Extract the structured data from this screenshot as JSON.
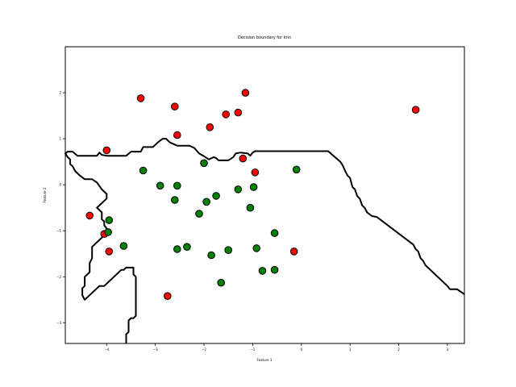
{
  "chart_data": {
    "type": "scatter",
    "title": "Decision boundary for knn",
    "xlabel": "Feature 1",
    "ylabel": "Feature 2",
    "xlim": [
      -4.85,
      3.35
    ],
    "ylim": [
      -3.45,
      3.0
    ],
    "xticks": [
      -4,
      -3,
      -2,
      -1,
      0,
      1,
      2,
      3
    ],
    "yticks": [
      -3,
      -2,
      -1,
      0,
      1,
      2
    ],
    "grid": false,
    "colors": {
      "class_red": "#ff0000",
      "class_green": "#008000",
      "edge": "#000000",
      "boundary": "#000000"
    },
    "series": [
      {
        "color": "red",
        "points": [
          [
            -3.3,
            1.88
          ],
          [
            -2.6,
            1.7
          ],
          [
            -1.15,
            2.0
          ],
          [
            -1.55,
            1.53
          ],
          [
            -1.3,
            1.57
          ],
          [
            -2.55,
            1.08
          ],
          [
            -1.88,
            1.25
          ],
          [
            -4.0,
            0.75
          ],
          [
            -1.2,
            0.57
          ],
          [
            -0.95,
            0.27
          ],
          [
            -4.35,
            -0.67
          ],
          [
            -4.05,
            -1.07
          ],
          [
            -3.95,
            -1.45
          ],
          [
            -2.75,
            -2.42
          ],
          [
            -0.15,
            -1.45
          ],
          [
            2.35,
            1.63
          ]
        ]
      },
      {
        "color": "green",
        "points": [
          [
            -3.25,
            0.31
          ],
          [
            -2.9,
            -0.02
          ],
          [
            -2.55,
            -0.02
          ],
          [
            -2.6,
            -0.33
          ],
          [
            -2.0,
            0.47
          ],
          [
            -1.95,
            -0.37
          ],
          [
            -1.75,
            -0.24
          ],
          [
            -1.3,
            -0.1
          ],
          [
            -0.98,
            -0.05
          ],
          [
            -0.1,
            0.33
          ],
          [
            -2.1,
            -0.63
          ],
          [
            -1.05,
            -0.5
          ],
          [
            -3.95,
            -0.77
          ],
          [
            -3.97,
            -1.03
          ],
          [
            -3.65,
            -1.33
          ],
          [
            -2.55,
            -1.4
          ],
          [
            -2.35,
            -1.35
          ],
          [
            -1.85,
            -1.53
          ],
          [
            -1.5,
            -1.42
          ],
          [
            -0.92,
            -1.38
          ],
          [
            -0.55,
            -1.05
          ],
          [
            -0.8,
            -1.87
          ],
          [
            -0.55,
            -1.85
          ],
          [
            -1.65,
            -2.13
          ]
        ]
      }
    ],
    "boundary": [
      [
        [
          -3.6,
          -3.45
        ],
        [
          -3.6,
          -3.25
        ],
        [
          -3.55,
          -3.2
        ],
        [
          -3.55,
          -2.95
        ],
        [
          -3.5,
          -2.9
        ],
        [
          -3.45,
          -2.9
        ],
        [
          -3.4,
          -2.85
        ],
        [
          -3.4,
          -2.0
        ],
        [
          -3.45,
          -1.95
        ],
        [
          -3.45,
          -1.8
        ],
        [
          -3.6,
          -1.8
        ],
        [
          -3.65,
          -1.85
        ],
        [
          -3.7,
          -1.85
        ],
        [
          -3.85,
          -2.0
        ],
        [
          -3.95,
          -2.1
        ],
        [
          -4.05,
          -2.2
        ],
        [
          -4.15,
          -2.2
        ],
        [
          -4.45,
          -2.5
        ],
        [
          -4.5,
          -2.4
        ],
        [
          -4.5,
          -2.25
        ],
        [
          -4.45,
          -2.2
        ],
        [
          -4.45,
          -2.0
        ],
        [
          -4.35,
          -1.9
        ],
        [
          -4.35,
          -1.7
        ],
        [
          -4.3,
          -1.6
        ],
        [
          -4.3,
          -1.35
        ],
        [
          -4.0,
          -1.05
        ],
        [
          -3.95,
          -1.0
        ],
        [
          -4.0,
          -0.95
        ],
        [
          -4.05,
          -0.88
        ],
        [
          -4.05,
          -0.8
        ],
        [
          -4.1,
          -0.75
        ],
        [
          -4.1,
          -0.6
        ],
        [
          -4.2,
          -0.5
        ],
        [
          -4.0,
          -0.3
        ],
        [
          -4.0,
          -0.2
        ],
        [
          -4.1,
          -0.1
        ],
        [
          -4.2,
          0.05
        ],
        [
          -4.3,
          0.12
        ],
        [
          -4.45,
          0.12
        ],
        [
          -4.55,
          0.2
        ],
        [
          -4.65,
          0.3
        ],
        [
          -4.7,
          0.4
        ],
        [
          -4.75,
          0.45
        ],
        [
          -4.75,
          0.55
        ],
        [
          -4.8,
          0.6
        ],
        [
          -4.85,
          0.68
        ],
        [
          -4.8,
          0.72
        ],
        [
          -4.7,
          0.72
        ],
        [
          -4.6,
          0.63
        ],
        [
          -4.2,
          0.63
        ],
        [
          -4.15,
          0.7
        ],
        [
          -4.1,
          0.65
        ],
        [
          -4.0,
          0.63
        ],
        [
          -3.6,
          0.63
        ],
        [
          -3.5,
          0.72
        ],
        [
          -3.3,
          0.72
        ],
        [
          -3.25,
          0.82
        ],
        [
          -3.05,
          0.82
        ],
        [
          -2.95,
          0.92
        ],
        [
          -2.85,
          1.0
        ],
        [
          -2.78,
          1.0
        ],
        [
          -2.7,
          0.92
        ],
        [
          -2.55,
          0.85
        ],
        [
          -2.3,
          0.85
        ],
        [
          -2.2,
          0.8
        ],
        [
          -2.1,
          0.68
        ],
        [
          -2.0,
          0.62
        ],
        [
          -1.9,
          0.55
        ],
        [
          -1.8,
          0.6
        ],
        [
          -1.75,
          0.58
        ],
        [
          -1.7,
          0.53
        ],
        [
          -1.5,
          0.53
        ],
        [
          -1.4,
          0.6
        ],
        [
          -1.35,
          0.68
        ],
        [
          -1.25,
          0.7
        ],
        [
          -1.1,
          0.68
        ],
        [
          -1.05,
          0.63
        ],
        [
          -1.0,
          0.7
        ],
        [
          -0.95,
          0.73
        ],
        [
          -0.9,
          0.73
        ],
        [
          0.55,
          0.73
        ],
        [
          0.8,
          0.5
        ],
        [
          0.85,
          0.42
        ],
        [
          0.9,
          0.3
        ],
        [
          0.95,
          0.2
        ],
        [
          1.0,
          0.15
        ],
        [
          1.05,
          -0.05
        ],
        [
          1.1,
          -0.1
        ],
        [
          1.15,
          -0.25
        ],
        [
          1.2,
          -0.3
        ],
        [
          1.25,
          -0.45
        ],
        [
          1.3,
          -0.5
        ],
        [
          1.35,
          -0.6
        ],
        [
          1.45,
          -0.68
        ],
        [
          1.55,
          -0.7
        ],
        [
          2.3,
          -1.3
        ],
        [
          2.35,
          -1.4
        ],
        [
          2.4,
          -1.45
        ],
        [
          2.45,
          -1.6
        ],
        [
          2.5,
          -1.65
        ],
        [
          2.55,
          -1.75
        ],
        [
          3.0,
          -2.2
        ],
        [
          3.05,
          -2.27
        ],
        [
          3.2,
          -2.27
        ],
        [
          3.35,
          -2.38
        ]
      ]
    ]
  }
}
